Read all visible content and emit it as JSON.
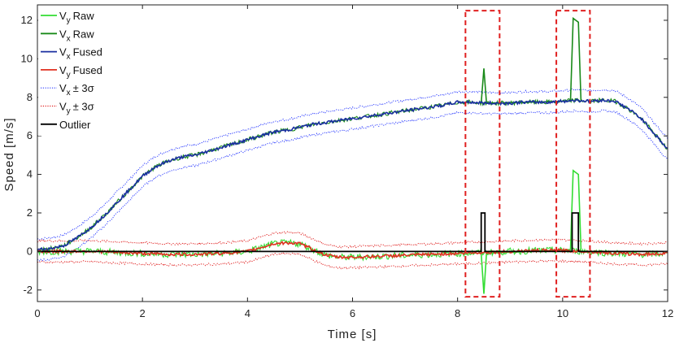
{
  "chart_data": {
    "type": "line",
    "xlabel": "Time [s]",
    "ylabel": "Speed [m/s]",
    "xlim": [
      0,
      12
    ],
    "ylim": [
      -2.6,
      12.8
    ],
    "xticks": [
      0,
      2,
      4,
      6,
      8,
      10,
      12
    ],
    "yticks": [
      -2,
      0,
      2,
      4,
      6,
      8,
      10,
      12
    ],
    "grid": false,
    "legend_position": "top-left",
    "colors": {
      "vy_raw": "#33dd33",
      "vx_raw": "#1a8a1a",
      "vx_fused": "#1a2fa0",
      "vy_fused": "#e03020",
      "vx_band": "#2f3fff",
      "vy_band": "#e02020",
      "outlier": "#000000",
      "highlight": "#e02020"
    },
    "legend": [
      {
        "sym": "V",
        "sub": "y",
        "rest": "Raw",
        "key": "vy_raw",
        "style": "solid"
      },
      {
        "sym": "V",
        "sub": "x",
        "rest": "Raw",
        "key": "vx_raw",
        "style": "solid"
      },
      {
        "sym": "V",
        "sub": "x",
        "rest": "Fused",
        "key": "vx_fused",
        "style": "solid"
      },
      {
        "sym": "V",
        "sub": "y",
        "rest": "Fused",
        "key": "vy_fused",
        "style": "solid"
      },
      {
        "sym": "V",
        "sub": "x",
        "rest": "± 3σ",
        "key": "vx_band",
        "style": "dotted"
      },
      {
        "sym": "V",
        "sub": "y",
        "rest": "± 3σ",
        "key": "vy_band",
        "style": "dotted"
      },
      {
        "sym": "Outlier",
        "sub": "",
        "rest": "",
        "key": "outlier",
        "style": "solid"
      }
    ],
    "series": [
      {
        "name": "Vx Fused",
        "x": [
          0,
          0.25,
          0.5,
          0.75,
          1,
          1.25,
          1.5,
          1.75,
          2,
          2.25,
          2.5,
          2.75,
          3,
          3.25,
          3.5,
          3.75,
          4,
          4.25,
          4.5,
          4.75,
          5,
          5.25,
          5.5,
          5.75,
          6,
          6.25,
          6.5,
          6.75,
          7,
          7.25,
          7.5,
          7.75,
          8,
          8.25,
          8.5,
          8.75,
          9,
          9.25,
          9.5,
          9.75,
          10,
          10.25,
          10.5,
          10.75,
          11,
          11.25,
          11.5,
          11.75,
          12
        ],
        "y": [
          0.1,
          0.15,
          0.3,
          0.7,
          1.2,
          1.8,
          2.5,
          3.2,
          3.9,
          4.4,
          4.7,
          4.9,
          5.0,
          5.2,
          5.4,
          5.6,
          5.8,
          6.0,
          6.2,
          6.3,
          6.45,
          6.6,
          6.7,
          6.8,
          6.9,
          7.0,
          7.1,
          7.2,
          7.3,
          7.4,
          7.5,
          7.6,
          7.75,
          7.75,
          7.7,
          7.7,
          7.7,
          7.75,
          7.75,
          7.75,
          7.8,
          7.85,
          7.8,
          7.85,
          7.8,
          7.4,
          6.9,
          6.1,
          5.3
        ]
      },
      {
        "name": "Vy Fused",
        "x": [
          0,
          0.5,
          1,
          1.5,
          2,
          2.5,
          3,
          3.5,
          4,
          4.25,
          4.5,
          4.75,
          5,
          5.25,
          5.5,
          5.75,
          6,
          6.5,
          7,
          7.5,
          8,
          8.5,
          9,
          9.5,
          10,
          10.5,
          11,
          11.5,
          12
        ],
        "y": [
          0.0,
          0.0,
          0.02,
          -0.05,
          -0.1,
          -0.15,
          -0.15,
          -0.1,
          0.0,
          0.2,
          0.4,
          0.45,
          0.4,
          0.1,
          -0.2,
          -0.3,
          -0.3,
          -0.25,
          -0.2,
          -0.15,
          -0.1,
          -0.05,
          0.0,
          0.05,
          0.05,
          0.0,
          -0.1,
          -0.15,
          -0.1
        ]
      },
      {
        "name": "Vx Raw spikes",
        "points": [
          [
            8.45,
            7.7
          ],
          [
            8.5,
            9.5
          ],
          [
            8.55,
            7.7
          ],
          [
            10.15,
            7.8
          ],
          [
            10.2,
            12.1
          ],
          [
            10.3,
            11.9
          ],
          [
            10.35,
            7.8
          ]
        ]
      },
      {
        "name": "Vy Raw spikes",
        "points": [
          [
            8.45,
            -0.1
          ],
          [
            8.5,
            -2.2
          ],
          [
            8.55,
            -0.1
          ],
          [
            10.15,
            0.1
          ],
          [
            10.2,
            4.2
          ],
          [
            10.3,
            4.0
          ],
          [
            10.35,
            0.1
          ]
        ]
      },
      {
        "name": "Outlier",
        "x": [
          0,
          8.45,
          8.45,
          8.52,
          8.52,
          10.18,
          10.18,
          10.3,
          10.3,
          12
        ],
        "y": [
          0,
          0,
          2,
          2,
          0,
          0,
          2,
          2,
          0,
          0
        ]
      }
    ],
    "band_sigma": 0.55,
    "highlights": [
      {
        "x0": 8.15,
        "x1": 8.8,
        "y0": -2.35,
        "y1": 12.5
      },
      {
        "x0": 9.88,
        "x1": 10.52,
        "y0": -2.35,
        "y1": 12.5
      }
    ]
  }
}
